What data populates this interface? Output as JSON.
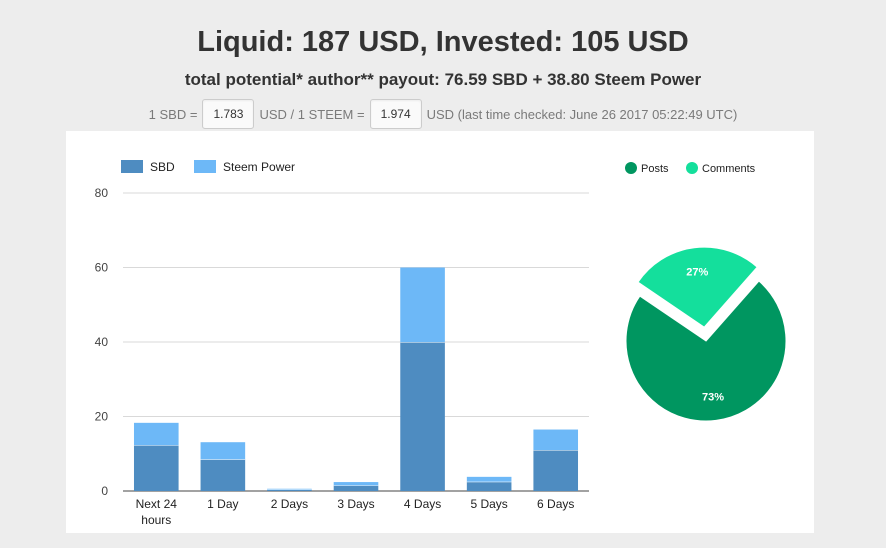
{
  "header": {
    "title": "Liquid: 187 USD, Invested: 105 USD",
    "subtitle": "total potential* author** payout: 76.59 SBD + 38.80 Steem Power"
  },
  "rates": {
    "sbd_prefix": "1 SBD =",
    "sbd_value": "1.783",
    "mid": "USD / 1 STEEM =",
    "steem_value": "1.974",
    "suffix": "USD (last time checked: June 26 2017 05:22:49 UTC)"
  },
  "colors": {
    "sbd": "#4e8cc1",
    "steem_power": "#6db8f7",
    "posts": "#009660",
    "comments": "#14df9c"
  },
  "chart_data": [
    {
      "type": "bar",
      "stacked": true,
      "categories": [
        "Next 24 hours",
        "1 Day",
        "2 Days",
        "3 Days",
        "4 Days",
        "5 Days",
        "6 Days"
      ],
      "series": [
        {
          "name": "SBD",
          "values": [
            12.3,
            8.5,
            0.4,
            1.5,
            40,
            2.5,
            11
          ]
        },
        {
          "name": "Steem Power",
          "values": [
            6,
            4.6,
            0.2,
            0.9,
            20,
            1.3,
            5.5
          ]
        }
      ],
      "ylim": [
        0,
        80
      ],
      "yticks": [
        0,
        20,
        40,
        60,
        80
      ],
      "grid": true,
      "legend": "top-left"
    },
    {
      "type": "pie",
      "labels": [
        "Posts",
        "Comments"
      ],
      "values": [
        73,
        27
      ],
      "value_labels": [
        "73%",
        "27%"
      ],
      "exploded": "Comments",
      "legend": "top"
    }
  ]
}
